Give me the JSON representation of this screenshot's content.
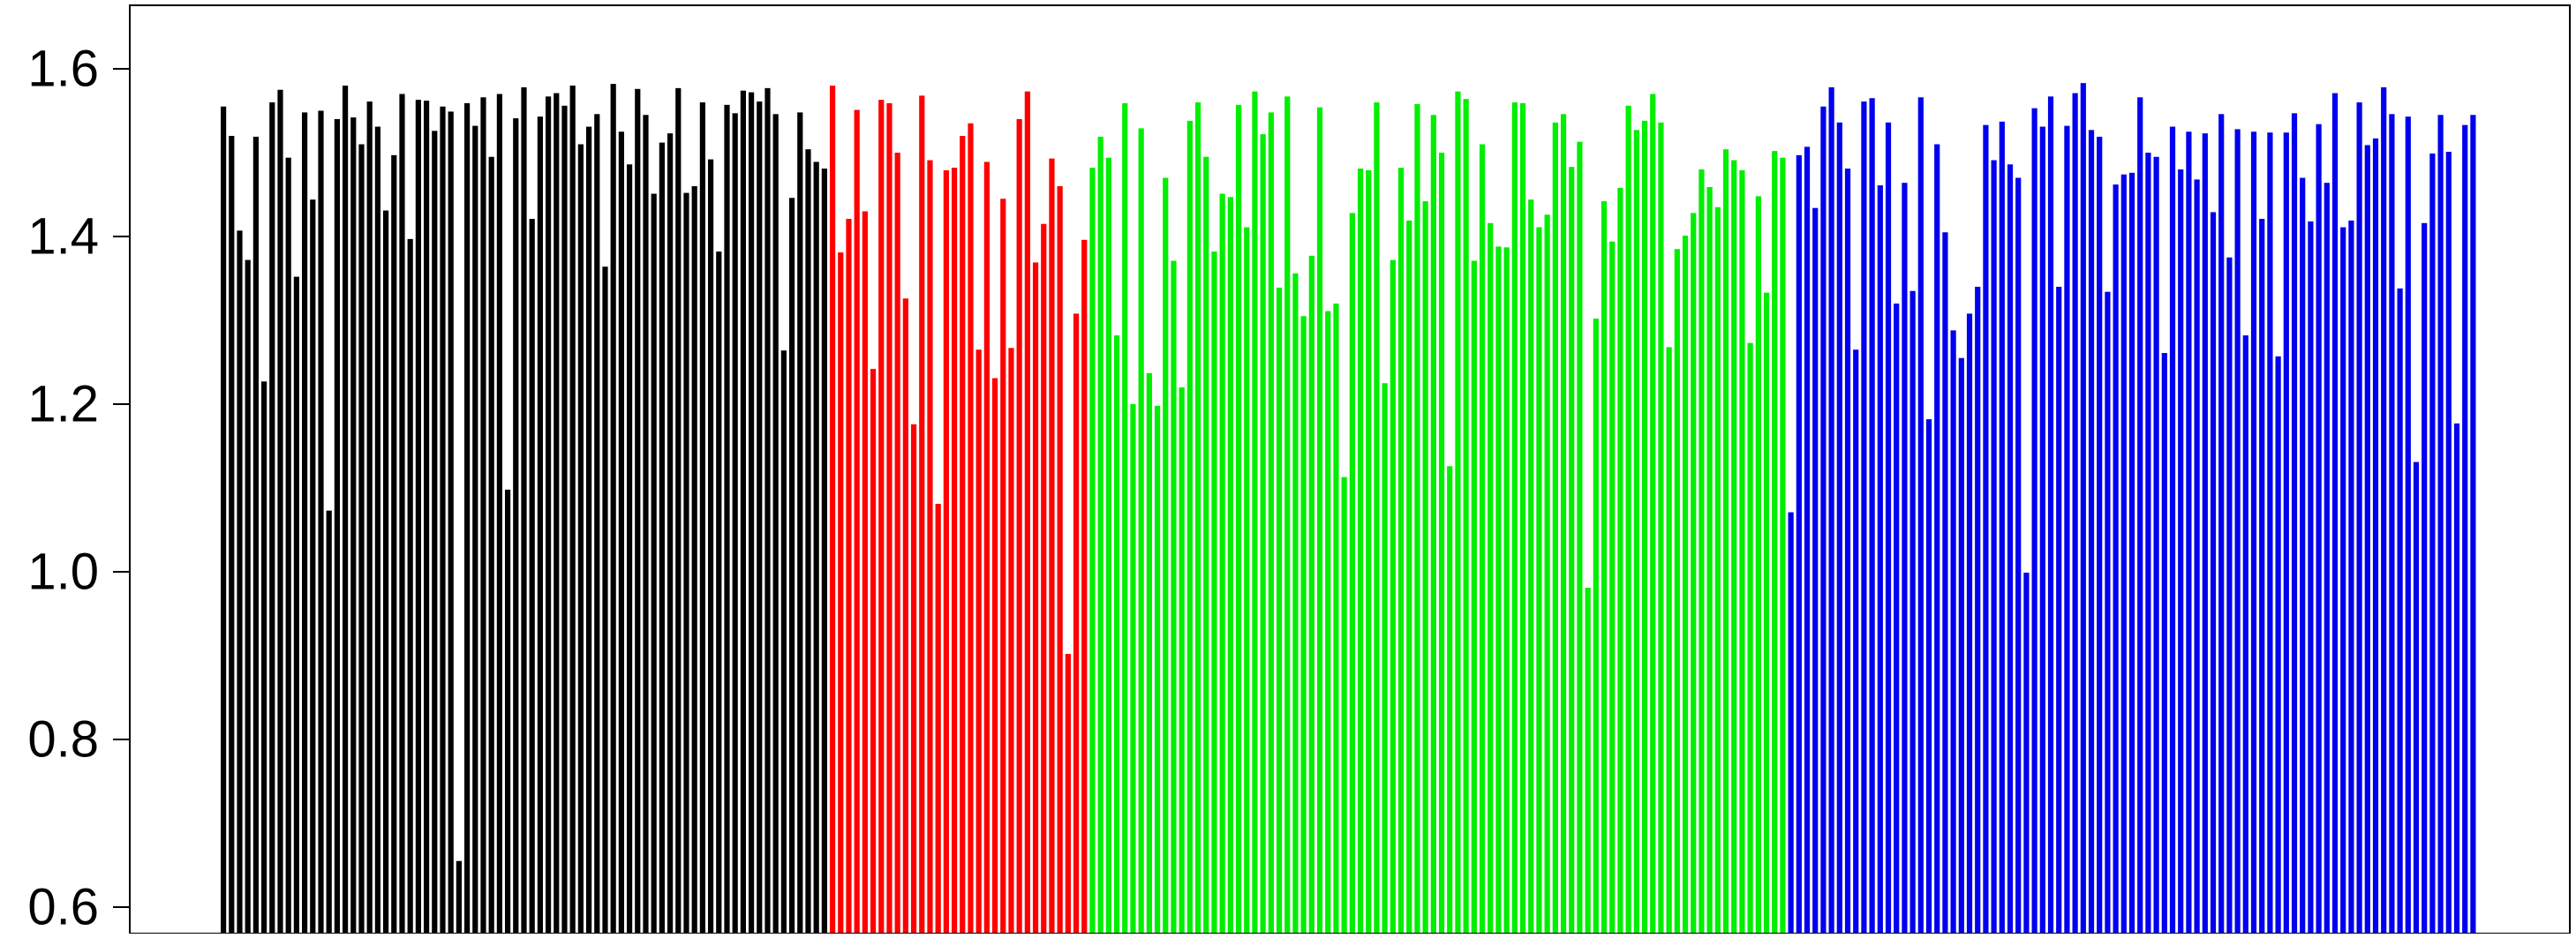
{
  "chart_data": {
    "type": "bar",
    "title": "",
    "xlabel": "",
    "ylabel": "",
    "ylim": [
      0.6,
      1.64
    ],
    "yticks": [
      "0.6",
      "0.8",
      "1.0",
      "1.2",
      "1.4",
      "1.6"
    ],
    "grid": false,
    "legend": "none",
    "series": [
      {
        "color": "#000000",
        "values": [
          1.555,
          1.52,
          1.407,
          1.372,
          1.519,
          1.227,
          1.56,
          1.575,
          1.494,
          1.352,
          1.548,
          1.444,
          1.55,
          1.073,
          1.54,
          1.58,
          1.542,
          1.51,
          1.561,
          1.531,
          1.431,
          1.497,
          1.57,
          1.397,
          1.563,
          1.562,
          1.526,
          1.555,
          1.549,
          0.655,
          1.559,
          1.532,
          1.566,
          1.495,
          1.57,
          1.098,
          1.541,
          1.578,
          1.421,
          1.543,
          1.567,
          1.571,
          1.556,
          1.58,
          1.51,
          1.531,
          1.546,
          1.364,
          1.582,
          1.525,
          1.486,
          1.576,
          1.545,
          1.451,
          1.512,
          1.523,
          1.577,
          1.452,
          1.46,
          1.56,
          1.492,
          1.382,
          1.557,
          1.547,
          1.574,
          1.572,
          1.561,
          1.577,
          1.546,
          1.264,
          1.446,
          1.548,
          1.504,
          1.489,
          1.481
        ]
      },
      {
        "color": "#ff0000",
        "values": [
          1.58,
          1.381,
          1.421,
          1.551,
          1.43,
          1.242,
          1.563,
          1.559,
          1.5,
          1.326,
          1.176,
          1.568,
          1.491,
          1.081,
          1.479,
          1.482,
          1.52,
          1.535,
          1.265,
          1.489,
          1.231,
          1.445,
          1.267,
          1.54,
          1.573,
          1.369,
          1.415,
          1.493,
          1.46,
          0.902,
          1.308,
          1.396
        ]
      },
      {
        "color": "#00ee00",
        "values": [
          1.482,
          1.519,
          1.494,
          1.282,
          1.559,
          1.2,
          1.529,
          1.237,
          1.198,
          1.47,
          1.371,
          1.22,
          1.538,
          1.56,
          1.495,
          1.382,
          1.451,
          1.447,
          1.557,
          1.411,
          1.573,
          1.522,
          1.548,
          1.339,
          1.567,
          1.356,
          1.305,
          1.377,
          1.554,
          1.311,
          1.32,
          1.113,
          1.428,
          1.481,
          1.479,
          1.56,
          1.225,
          1.372,
          1.482,
          1.419,
          1.558,
          1.442,
          1.545,
          1.5,
          1.126,
          1.573,
          1.564,
          1.371,
          1.51,
          1.416,
          1.388,
          1.387,
          1.56,
          1.559,
          1.444,
          1.411,
          1.426,
          1.536,
          1.546,
          1.483,
          1.513,
          0.981,
          1.302,
          1.442,
          1.394,
          1.458,
          1.556,
          1.527,
          1.538,
          1.57,
          1.536,
          1.268,
          1.385,
          1.401,
          1.428,
          1.48,
          1.459,
          1.435,
          1.504,
          1.491,
          1.479,
          1.273,
          1.448,
          1.333,
          1.502,
          1.494
        ]
      },
      {
        "color": "#0000ee",
        "values": [
          1.071,
          1.497,
          1.507,
          1.434,
          1.555,
          1.578,
          1.536,
          1.481,
          1.265,
          1.561,
          1.565,
          1.461,
          1.536,
          1.32,
          1.464,
          1.335,
          1.566,
          1.182,
          1.51,
          1.405,
          1.288,
          1.255,
          1.308,
          1.34,
          1.533,
          1.491,
          1.537,
          1.486,
          1.47,
          0.999,
          1.553,
          1.531,
          1.567,
          1.34,
          1.532,
          1.571,
          1.583,
          1.527,
          1.519,
          1.334,
          1.462,
          1.474,
          1.476,
          1.566,
          1.5,
          1.495,
          1.261,
          1.531,
          1.48,
          1.525,
          1.468,
          1.523,
          1.429,
          1.546,
          1.375,
          1.528,
          1.282,
          1.525,
          1.421,
          1.524,
          1.257,
          1.524,
          1.547,
          1.47,
          1.418,
          1.534,
          1.464,
          1.571,
          1.411,
          1.419,
          1.56,
          1.509,
          1.517,
          1.578,
          1.546,
          1.338,
          1.543,
          1.131,
          1.416,
          1.499,
          1.545,
          1.501,
          1.177,
          1.533,
          1.545
        ]
      }
    ]
  }
}
